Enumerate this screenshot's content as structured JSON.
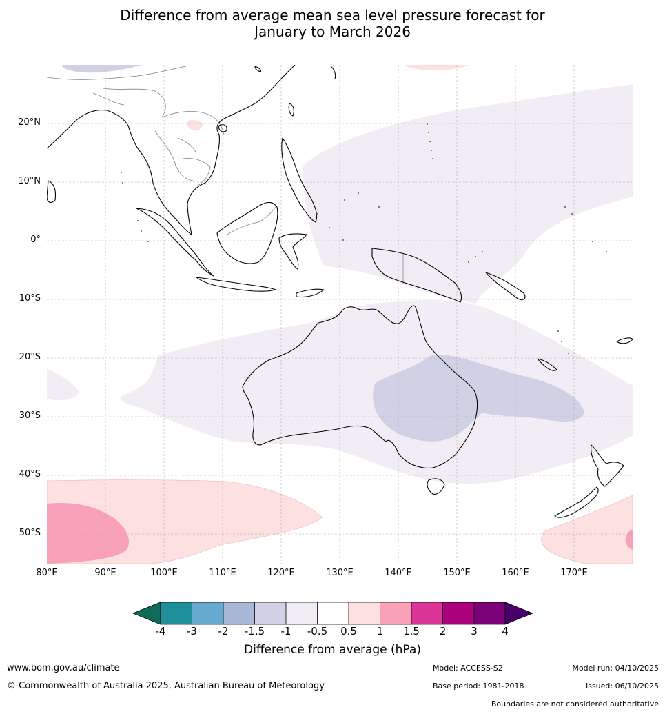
{
  "title_line1": "Difference from average mean sea level pressure forecast for",
  "title_line2": "January to March 2026",
  "map": {
    "lat_labels": [
      "20°N",
      "10°N",
      "0°",
      "10°S",
      "20°S",
      "30°S",
      "40°S",
      "50°S"
    ],
    "lon_labels": [
      "80°E",
      "90°E",
      "100°E",
      "110°E",
      "120°E",
      "130°E",
      "140°E",
      "150°E",
      "160°E",
      "170°E"
    ],
    "colors": {
      "ocean": "#ffffff",
      "coast": "#000000",
      "border": "#808080",
      "grid": "#aaaaaa"
    }
  },
  "colorbar": {
    "title": "Difference from average (hPa)",
    "ticks": [
      "-4",
      "-3",
      "-2",
      "-1.5",
      "-1",
      "-0.5",
      "0.5",
      "1",
      "1.5",
      "2",
      "3",
      "4"
    ],
    "colors": [
      "#0e6b5a",
      "#1f8f99",
      "#68a9d0",
      "#a7b7d5",
      "#d0d1e5",
      "#f2ecf5",
      "#ffffff",
      "#fde0e0",
      "#f9a1b8",
      "#dd3497",
      "#ae017e",
      "#7a0177",
      "#49006a"
    ]
  },
  "footer": {
    "website": "www.bom.gov.au/climate",
    "copyright": "© Commonwealth of Australia 2025, Australian Bureau of Meteorology",
    "model": "Model: ACCESS-S2",
    "base_period": "Base period: 1981-2018",
    "model_run": "Model run: 04/10/2025",
    "issued": "Issued: 06/10/2025",
    "disclaimer": "Boundaries are not considered authoritative"
  }
}
